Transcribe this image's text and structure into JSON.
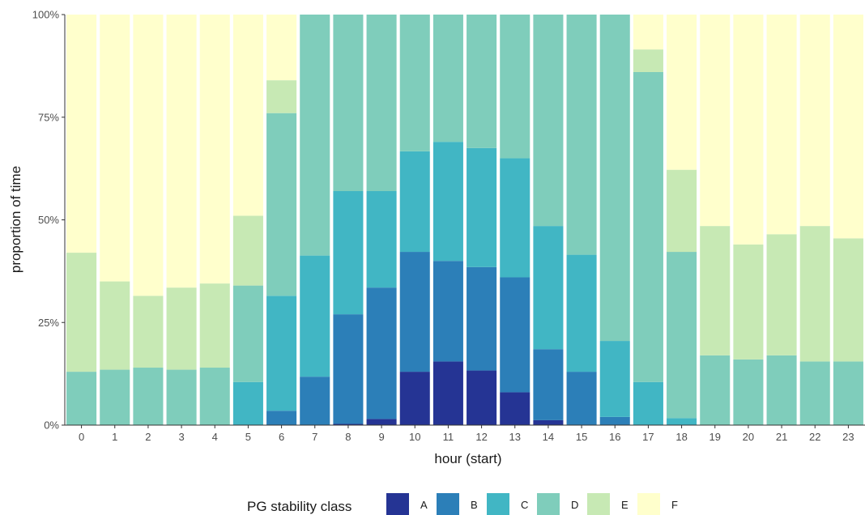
{
  "chart_data": {
    "type": "bar",
    "stacked": true,
    "normalized": true,
    "title": "",
    "xlabel": "hour (start)",
    "ylabel": "proportion of time",
    "ylim": [
      0,
      1
    ],
    "y_tick_labels": [
      "0%",
      "25%",
      "50%",
      "75%",
      "100%"
    ],
    "y_ticks": [
      0,
      0.25,
      0.5,
      0.75,
      1.0
    ],
    "categories": [
      "0",
      "1",
      "2",
      "3",
      "4",
      "5",
      "6",
      "7",
      "8",
      "9",
      "10",
      "11",
      "12",
      "13",
      "14",
      "15",
      "16",
      "17",
      "18",
      "19",
      "20",
      "21",
      "22",
      "23"
    ],
    "grid": false,
    "legend": {
      "title": "PG stability class",
      "placement": "bottom"
    },
    "series": [
      {
        "name": "A",
        "color": "#253494",
        "values": [
          0,
          0,
          0,
          0,
          0,
          0,
          0,
          0,
          0.003,
          0.015,
          0.13,
          0.155,
          0.133,
          0.08,
          0.012,
          0,
          0,
          0,
          0,
          0,
          0,
          0,
          0,
          0
        ]
      },
      {
        "name": "B",
        "color": "#2c7fb8",
        "values": [
          0,
          0,
          0,
          0,
          0,
          0,
          0.035,
          0.118,
          0.267,
          0.32,
          0.292,
          0.245,
          0.252,
          0.28,
          0.173,
          0.13,
          0.02,
          0,
          0,
          0,
          0,
          0,
          0,
          0
        ]
      },
      {
        "name": "C",
        "color": "#41b6c4",
        "values": [
          0,
          0,
          0,
          0,
          0,
          0.105,
          0.28,
          0.295,
          0.3,
          0.235,
          0.245,
          0.29,
          0.29,
          0.29,
          0.3,
          0.285,
          0.185,
          0.105,
          0.017,
          0,
          0,
          0,
          0,
          0
        ]
      },
      {
        "name": "D",
        "color": "#7fcdbb",
        "values": [
          0.13,
          0.135,
          0.14,
          0.135,
          0.14,
          0.235,
          0.445,
          0.587,
          0.43,
          0.43,
          0.333,
          0.31,
          0.325,
          0.35,
          0.515,
          0.585,
          0.795,
          0.755,
          0.405,
          0.17,
          0.16,
          0.17,
          0.155,
          0.155
        ]
      },
      {
        "name": "E",
        "color": "#c7e9b4",
        "values": [
          0.29,
          0.215,
          0.175,
          0.2,
          0.205,
          0.17,
          0.08,
          0,
          0,
          0,
          0,
          0,
          0,
          0,
          0,
          0,
          0,
          0.055,
          0.2,
          0.315,
          0.28,
          0.295,
          0.33,
          0.3
        ]
      },
      {
        "name": "F",
        "color": "#ffffcc",
        "values": [
          0.58,
          0.65,
          0.685,
          0.665,
          0.655,
          0.49,
          0.16,
          0,
          0,
          0,
          0,
          0,
          0,
          0,
          0,
          0,
          0,
          0.085,
          0.378,
          0.515,
          0.56,
          0.535,
          0.515,
          0.545
        ]
      }
    ]
  }
}
